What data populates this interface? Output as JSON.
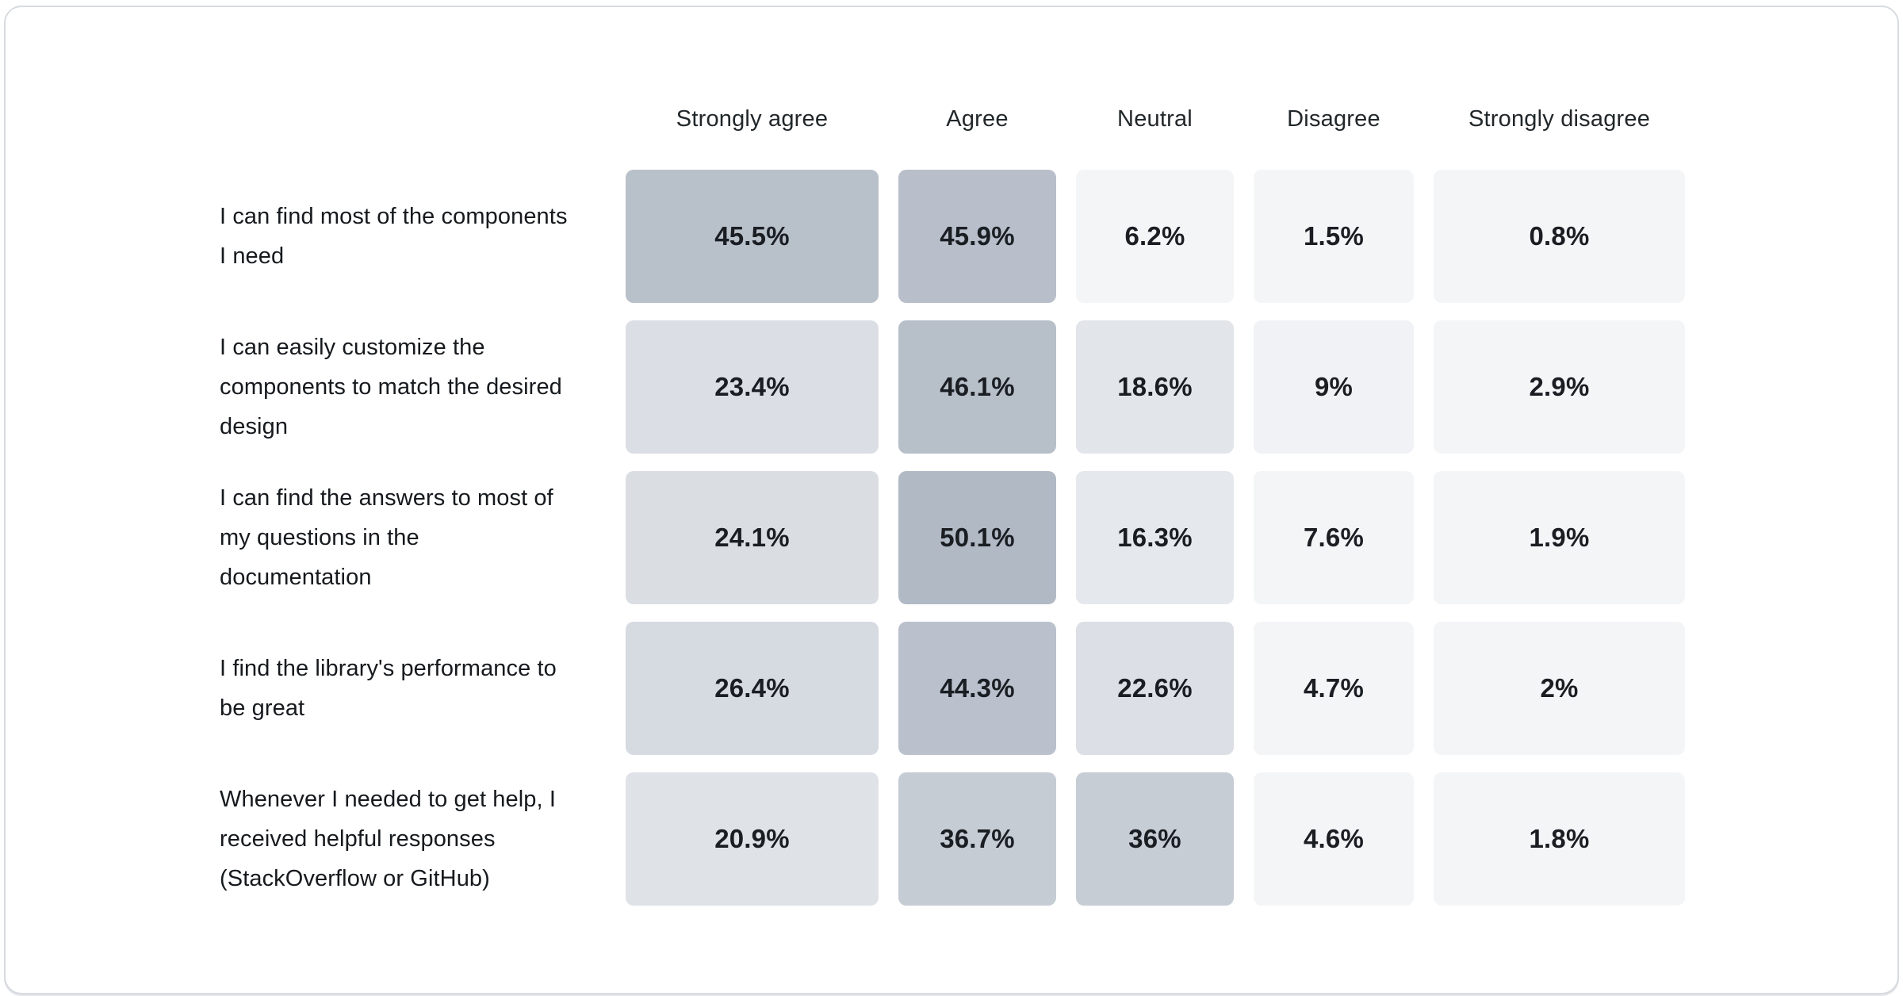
{
  "chart_data": {
    "type": "heatmap",
    "title": "",
    "columns": [
      "Strongly agree",
      "Agree",
      "Neutral",
      "Disagree",
      "Strongly disagree"
    ],
    "rows": [
      {
        "label": "I can find most of the components I need",
        "values": [
          45.5,
          45.9,
          6.2,
          1.5,
          0.8
        ],
        "display": [
          "45.5%",
          "45.9%",
          "6.2%",
          "1.5%",
          "0.8%"
        ]
      },
      {
        "label": "I can easily customize the components to match the desired design",
        "values": [
          23.4,
          46.1,
          18.6,
          9,
          2.9
        ],
        "display": [
          "23.4%",
          "46.1%",
          "18.6%",
          "9%",
          "2.9%"
        ]
      },
      {
        "label": "I can find the answers to most of my questions in the documentation",
        "values": [
          24.1,
          50.1,
          16.3,
          7.6,
          1.9
        ],
        "display": [
          "24.1%",
          "50.1%",
          "16.3%",
          "7.6%",
          "1.9%"
        ]
      },
      {
        "label": "I find the library's performance to be great",
        "values": [
          26.4,
          44.3,
          22.6,
          4.7,
          2
        ],
        "display": [
          "26.4%",
          "44.3%",
          "22.6%",
          "4.7%",
          "2%"
        ]
      },
      {
        "label": "Whenever I needed to get help, I received helpful responses (StackOverflow or GitHub)",
        "values": [
          20.9,
          36.7,
          36,
          4.6,
          1.8
        ],
        "display": [
          "20.9%",
          "36.7%",
          "36%",
          "4.6%",
          "1.8%"
        ]
      }
    ],
    "layout": {
      "legend": "none",
      "grid": "off",
      "value_range": [
        0,
        100
      ]
    },
    "colors": {
      "heat_base": "#64748b",
      "min_alpha": 0.07,
      "cell_text": "#1a1e23",
      "header_text": "#21272a",
      "label_text": "#16191d",
      "card_border": "#d7dbe0",
      "background": "#ffffff"
    }
  }
}
